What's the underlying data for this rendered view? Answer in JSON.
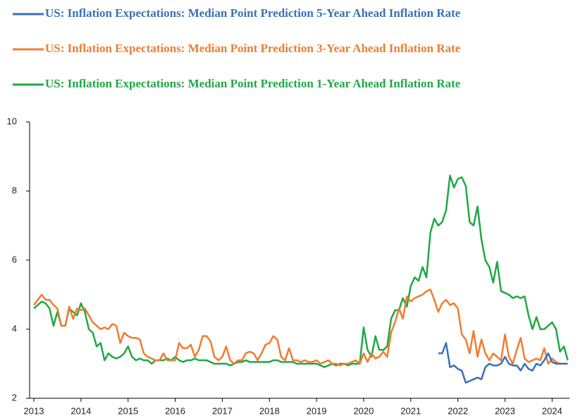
{
  "chart_data": {
    "type": "line",
    "x": [
      2013,
      2013.083,
      2013.167,
      2013.25,
      2013.333,
      2013.417,
      2013.5,
      2013.583,
      2013.667,
      2013.75,
      2013.833,
      2013.917,
      2014,
      2014.083,
      2014.167,
      2014.25,
      2014.333,
      2014.417,
      2014.5,
      2014.583,
      2014.667,
      2014.75,
      2014.833,
      2014.917,
      2015,
      2015.083,
      2015.167,
      2015.25,
      2015.333,
      2015.417,
      2015.5,
      2015.583,
      2015.667,
      2015.75,
      2015.833,
      2015.917,
      2016,
      2016.083,
      2016.167,
      2016.25,
      2016.333,
      2016.417,
      2016.5,
      2016.583,
      2016.667,
      2016.75,
      2016.833,
      2016.917,
      2017,
      2017.083,
      2017.167,
      2017.25,
      2017.333,
      2017.417,
      2017.5,
      2017.583,
      2017.667,
      2017.75,
      2017.833,
      2017.917,
      2018,
      2018.083,
      2018.167,
      2018.25,
      2018.333,
      2018.417,
      2018.5,
      2018.583,
      2018.667,
      2018.75,
      2018.833,
      2018.917,
      2019,
      2019.083,
      2019.167,
      2019.25,
      2019.333,
      2019.417,
      2019.5,
      2019.583,
      2019.667,
      2019.75,
      2019.833,
      2019.917,
      2020,
      2020.083,
      2020.167,
      2020.25,
      2020.333,
      2020.417,
      2020.5,
      2020.583,
      2020.667,
      2020.75,
      2020.833,
      2020.917,
      2021,
      2021.083,
      2021.167,
      2021.25,
      2021.333,
      2021.417,
      2021.5,
      2021.583,
      2021.667,
      2021.75,
      2021.833,
      2021.917,
      2022,
      2022.083,
      2022.167,
      2022.25,
      2022.333,
      2022.417,
      2022.5,
      2022.583,
      2022.667,
      2022.75,
      2022.833,
      2022.917,
      2023,
      2023.083,
      2023.167,
      2023.25,
      2023.333,
      2023.417,
      2023.5,
      2023.583,
      2023.667,
      2023.75,
      2023.833,
      2023.917,
      2024,
      2024.083,
      2024.167,
      2024.25,
      2024.333
    ],
    "series": [
      {
        "name": "US: Inflation Expectations: Median Point Prediction 5-Year Ahead Inflation Rate",
        "color": "#3b70b8",
        "values": [
          null,
          null,
          null,
          null,
          null,
          null,
          null,
          null,
          null,
          null,
          null,
          null,
          null,
          null,
          null,
          null,
          null,
          null,
          null,
          null,
          null,
          null,
          null,
          null,
          null,
          null,
          null,
          null,
          null,
          null,
          null,
          null,
          null,
          null,
          null,
          null,
          null,
          null,
          null,
          null,
          null,
          null,
          null,
          null,
          null,
          null,
          null,
          null,
          null,
          null,
          null,
          null,
          null,
          null,
          null,
          null,
          null,
          null,
          null,
          null,
          null,
          null,
          null,
          null,
          null,
          null,
          null,
          null,
          null,
          null,
          null,
          null,
          null,
          null,
          null,
          null,
          null,
          null,
          null,
          null,
          null,
          null,
          null,
          null,
          null,
          null,
          null,
          null,
          null,
          null,
          null,
          null,
          null,
          null,
          null,
          null,
          null,
          null,
          null,
          null,
          null,
          null,
          null,
          3.3,
          3.3,
          3.6,
          2.9,
          2.95,
          2.85,
          2.8,
          2.45,
          2.5,
          2.55,
          2.6,
          2.55,
          2.9,
          3.0,
          2.95,
          2.95,
          3.0,
          3.2,
          3.0,
          2.95,
          2.95,
          2.8,
          3.0,
          2.85,
          2.8,
          3.0,
          2.95,
          3.1,
          3.3,
          3.05,
          3.0,
          3.0,
          3.0,
          3.0
        ]
      },
      {
        "name": "US: Inflation Expectations: Median Point Prediction 3-Year Ahead Inflation Rate",
        "color": "#ed7d31",
        "values": [
          4.7,
          4.85,
          5.0,
          4.85,
          4.85,
          4.7,
          4.6,
          4.1,
          4.1,
          4.65,
          4.3,
          4.6,
          4.55,
          4.6,
          4.4,
          4.2,
          4.1,
          4.0,
          4.05,
          4.0,
          4.15,
          4.1,
          3.6,
          3.9,
          3.8,
          3.75,
          3.75,
          3.7,
          3.3,
          3.2,
          3.15,
          3.1,
          3.1,
          3.3,
          3.1,
          3.1,
          3.1,
          3.6,
          3.45,
          3.45,
          3.55,
          3.2,
          3.4,
          3.8,
          3.8,
          3.65,
          3.2,
          3.1,
          3.2,
          3.5,
          3.1,
          3.0,
          3.1,
          3.1,
          3.3,
          3.35,
          3.3,
          3.1,
          3.3,
          3.55,
          3.6,
          3.8,
          3.7,
          3.2,
          3.1,
          3.45,
          3.1,
          3.1,
          3.05,
          3.1,
          3.05,
          3.05,
          3.1,
          3.0,
          3.05,
          3.1,
          3.0,
          3.0,
          2.95,
          3.0,
          3.0,
          3.05,
          3.1,
          3.0,
          3.3,
          3.05,
          3.3,
          3.15,
          3.2,
          3.35,
          3.2,
          3.9,
          4.2,
          4.6,
          4.3,
          4.95,
          4.8,
          4.9,
          4.95,
          5.0,
          5.1,
          5.15,
          4.85,
          4.5,
          4.75,
          4.85,
          4.7,
          4.75,
          4.6,
          3.85,
          3.7,
          3.3,
          3.95,
          3.2,
          3.7,
          3.3,
          3.1,
          3.3,
          3.2,
          3.1,
          3.85,
          3.2,
          3.0,
          3.4,
          3.75,
          3.15,
          3.05,
          3.1,
          3.15,
          3.1,
          3.45,
          3.0,
          3.15,
          3.05,
          3.0,
          3.0,
          3.0
        ]
      },
      {
        "name": "US: Inflation Expectations: Median Point Prediction 1-Year Ahead Inflation Rate",
        "color": "#1fa846",
        "values": [
          4.6,
          4.7,
          4.8,
          4.75,
          4.6,
          4.1,
          4.5,
          4.1,
          4.1,
          4.6,
          4.5,
          4.4,
          4.75,
          4.5,
          4.0,
          3.9,
          3.5,
          3.6,
          3.1,
          3.3,
          3.2,
          3.15,
          3.2,
          3.3,
          3.5,
          3.2,
          3.1,
          3.15,
          3.1,
          3.1,
          3.0,
          3.1,
          3.1,
          3.1,
          3.15,
          3.1,
          3.2,
          3.1,
          3.05,
          3.1,
          3.1,
          3.15,
          3.1,
          3.1,
          3.1,
          3.05,
          3.0,
          3.0,
          3.0,
          3.0,
          2.95,
          3.0,
          3.05,
          3.05,
          3.1,
          3.05,
          3.05,
          3.05,
          3.05,
          3.05,
          3.05,
          3.1,
          3.1,
          3.05,
          3.05,
          3.05,
          3.05,
          3.0,
          3.0,
          3.0,
          3.0,
          3.0,
          3.0,
          2.95,
          2.9,
          2.95,
          3.0,
          2.95,
          3.0,
          3.0,
          2.95,
          3.0,
          3.0,
          3.0,
          4.05,
          3.4,
          3.2,
          3.8,
          3.4,
          3.4,
          3.5,
          4.3,
          4.55,
          4.55,
          4.9,
          4.65,
          5.25,
          5.5,
          5.4,
          5.8,
          5.5,
          6.8,
          7.2,
          7.0,
          7.1,
          7.45,
          8.45,
          8.1,
          8.35,
          8.4,
          8.15,
          7.1,
          7.0,
          7.55,
          6.6,
          6.0,
          5.8,
          5.35,
          5.95,
          5.1,
          5.05,
          5.0,
          4.9,
          4.95,
          4.9,
          4.95,
          4.4,
          4.0,
          4.35,
          4.0,
          4.0,
          4.1,
          4.2,
          4.0,
          3.35,
          3.5,
          3.1
        ]
      }
    ],
    "xlim": [
      2012.91,
      2024.37
    ],
    "xticks": [
      2013,
      2014,
      2015,
      2016,
      2017,
      2018,
      2019,
      2020,
      2021,
      2022,
      2023,
      2024
    ],
    "ylim": [
      2,
      10
    ],
    "yticks": [
      2,
      4,
      6,
      8,
      10
    ],
    "grid": false,
    "legend": "top"
  }
}
